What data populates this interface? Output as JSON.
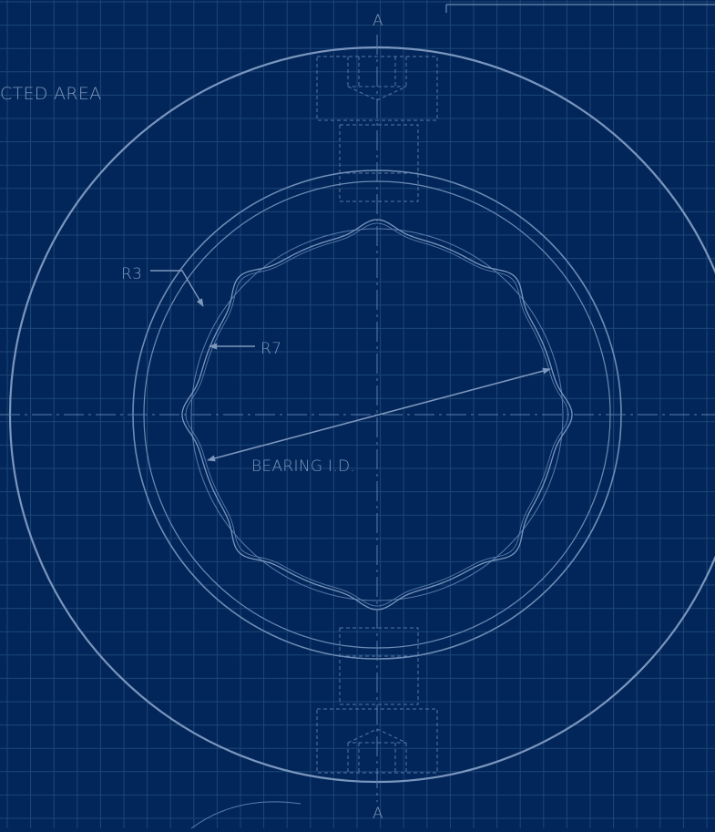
{
  "colors": {
    "background": "#022659",
    "grid_line": "#1d4779",
    "drawing_line": "#6e8cb6",
    "faint_line": "#4f72a3",
    "label_text": "#7e98be"
  },
  "labels": {
    "section_top": "A",
    "section_bottom": "A",
    "area_note": "CTED AREA",
    "radius_small": "R3",
    "radius_large": "R7",
    "bearing_id": "BEARING I.D."
  }
}
